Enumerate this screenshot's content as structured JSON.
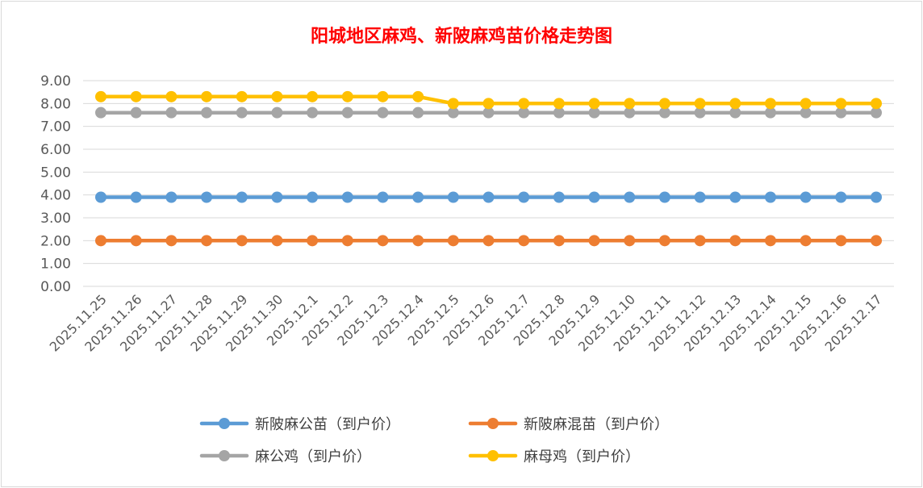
{
  "colors": {
    "title": "#ff0000",
    "grid": "#d9d9d9",
    "frame": "#d9d9d9",
    "tick_text": "#595959",
    "legend_text": "#404040"
  },
  "chart_data": {
    "type": "line",
    "title": "阳城地区麻鸡、新陂麻鸡苗价格走势图",
    "xlabel": "",
    "ylabel": "",
    "ylim": [
      0,
      9
    ],
    "ytick_step": 1,
    "ytick_labels": [
      "0.00",
      "1.00",
      "2.00",
      "3.00",
      "4.00",
      "5.00",
      "6.00",
      "7.00",
      "8.00",
      "9.00"
    ],
    "grid": "horizontal",
    "legend_position": "bottom",
    "categories": [
      "2025.11.25",
      "2025.11.26",
      "2025.11.27",
      "2025.11.28",
      "2025.11.29",
      "2025.11.30",
      "2025.12.1",
      "2025.12.2",
      "2025.12.3",
      "2025.12.4",
      "2025.12.5",
      "2025.12.6",
      "2025.12.7",
      "2025.12.8",
      "2025.12.9",
      "2025.12.10",
      "2025.12.11",
      "2025.12.12",
      "2025.12.13",
      "2025.12.14",
      "2025.12.15",
      "2025.12.16",
      "2025.12.17"
    ],
    "series": [
      {
        "name": "新陂麻公苗（到户价）",
        "color": "#5b9bd5",
        "values": [
          3.9,
          3.9,
          3.9,
          3.9,
          3.9,
          3.9,
          3.9,
          3.9,
          3.9,
          3.9,
          3.9,
          3.9,
          3.9,
          3.9,
          3.9,
          3.9,
          3.9,
          3.9,
          3.9,
          3.9,
          3.9,
          3.9,
          3.9
        ]
      },
      {
        "name": "新陂麻混苗（到户价）",
        "color": "#ed7d31",
        "values": [
          2.0,
          2.0,
          2.0,
          2.0,
          2.0,
          2.0,
          2.0,
          2.0,
          2.0,
          2.0,
          2.0,
          2.0,
          2.0,
          2.0,
          2.0,
          2.0,
          2.0,
          2.0,
          2.0,
          2.0,
          2.0,
          2.0,
          2.0
        ]
      },
      {
        "name": "麻公鸡（到户价）",
        "color": "#a5a5a5",
        "values": [
          7.6,
          7.6,
          7.6,
          7.6,
          7.6,
          7.6,
          7.6,
          7.6,
          7.6,
          7.6,
          7.6,
          7.6,
          7.6,
          7.6,
          7.6,
          7.6,
          7.6,
          7.6,
          7.6,
          7.6,
          7.6,
          7.6,
          7.6
        ]
      },
      {
        "name": "麻母鸡（到户价）",
        "color": "#ffc000",
        "values": [
          8.3,
          8.3,
          8.3,
          8.3,
          8.3,
          8.3,
          8.3,
          8.3,
          8.3,
          8.3,
          8.0,
          8.0,
          8.0,
          8.0,
          8.0,
          8.0,
          8.0,
          8.0,
          8.0,
          8.0,
          8.0,
          8.0,
          8.0
        ]
      }
    ]
  }
}
